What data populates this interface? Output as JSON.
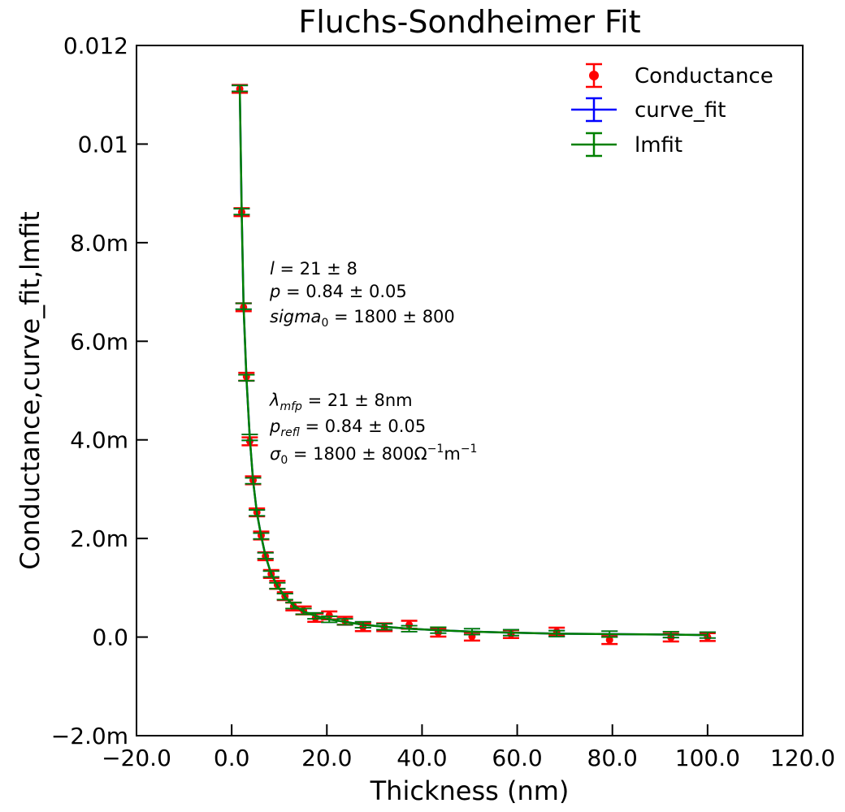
{
  "chart_data": {
    "type": "scatter",
    "title": "Fluchs-Sondheimer Fit",
    "xlabel": "Thickness (nm)",
    "ylabel": "Conductance,curve_fit,lmfit",
    "xlim": [
      -20,
      120
    ],
    "ylim": [
      -0.002,
      0.012
    ],
    "x_ticks": [
      -20,
      0,
      20,
      40,
      60,
      80,
      100,
      120
    ],
    "x_tick_labels": [
      "−20.0",
      "0.0",
      "20.0",
      "40.0",
      "60.0",
      "80.0",
      "100.0",
      "120.0"
    ],
    "y_ticks": [
      -0.002,
      0,
      0.002,
      0.004,
      0.006,
      0.008,
      0.01,
      0.012
    ],
    "y_tick_labels": [
      "−2.0m",
      "0.0",
      "2.0m",
      "4.0m",
      "6.0m",
      "8.0m",
      "0.01",
      "0.012"
    ],
    "grid": false,
    "legend_position": "top-right",
    "legend": [
      "Conductance",
      "curve_fit",
      "lmfit"
    ],
    "colors": {
      "Conductance": "#ff0000",
      "curve_fit": "#0000ff",
      "lmfit": "#008000"
    },
    "series": [
      {
        "name": "Conductance",
        "kind": "errorbar-points",
        "x": [
          1.7,
          2.1,
          2.5,
          3.1,
          3.8,
          4.5,
          5.3,
          6.2,
          7.1,
          8.3,
          9.6,
          11.2,
          13.0,
          15.1,
          17.6,
          20.5,
          23.8,
          27.6,
          32.1,
          37.3,
          43.4,
          50.5,
          58.7,
          68.3,
          79.4,
          92.3,
          100.0
        ],
        "y": [
          0.01112,
          0.00862,
          0.00669,
          0.00528,
          0.00397,
          0.00318,
          0.00253,
          0.00206,
          0.00164,
          0.00128,
          0.00106,
          0.00083,
          0.00062,
          0.00054,
          0.00039,
          0.00044,
          0.00033,
          0.0002,
          0.0002,
          0.00025,
          9e-05,
          1e-05,
          6e-05,
          0.00011,
          -6e-05,
          -1e-05,
          0.0
        ],
        "yerr": 8e-05
      },
      {
        "name": "curve_fit",
        "kind": "line",
        "x": [
          1.7,
          2.1,
          2.5,
          3.1,
          3.8,
          4.5,
          5.3,
          6.2,
          7.1,
          8.3,
          9.6,
          11.2,
          13.0,
          15.1,
          17.6,
          20.5,
          23.8,
          27.6,
          32.1,
          37.3,
          43.4,
          50.5,
          58.7,
          68.3,
          79.4,
          92.3,
          100.0
        ],
        "y": [
          0.01113,
          0.00863,
          0.00671,
          0.00526,
          0.00405,
          0.00317,
          0.00252,
          0.00205,
          0.00165,
          0.00128,
          0.00104,
          0.00082,
          0.00064,
          0.00052,
          0.00043,
          0.00036,
          0.00031,
          0.00025,
          0.00021,
          0.00017,
          0.00014,
          0.00011,
          9e-05,
          7e-05,
          6e-05,
          5e-05,
          4e-05
        ],
        "yerr": 6e-05
      },
      {
        "name": "lmfit",
        "kind": "line",
        "x": [
          1.7,
          2.1,
          2.5,
          3.1,
          3.8,
          4.5,
          5.3,
          6.2,
          7.1,
          8.3,
          9.6,
          11.2,
          13.0,
          15.1,
          17.6,
          20.5,
          23.8,
          27.6,
          32.1,
          37.3,
          43.4,
          50.5,
          58.7,
          68.3,
          79.4,
          92.3,
          100.0
        ],
        "y": [
          0.01113,
          0.00863,
          0.00671,
          0.00526,
          0.00405,
          0.00317,
          0.00252,
          0.00205,
          0.00165,
          0.00128,
          0.00104,
          0.00082,
          0.00064,
          0.00052,
          0.00043,
          0.00036,
          0.00031,
          0.00025,
          0.00021,
          0.00017,
          0.00014,
          0.00011,
          9e-05,
          7e-05,
          6e-05,
          5e-05,
          4e-05
        ],
        "yerr": 6e-05
      }
    ],
    "annotations": {
      "curve_fit": [
        "l = 21 ± 8",
        "p = 0.84 ± 0.05",
        "sigma₀ = 1800 ± 800"
      ],
      "lmfit": [
        "λ_mfp = 21 ± 8nm",
        "p_refl = 0.84 ± 0.05",
        "σ₀ = 1800 ± 800Ω⁻¹m⁻¹"
      ]
    }
  },
  "annotation_parts": {
    "curve_fit": {
      "l": {
        "sym": "l",
        "rest": " = 21 ± 8"
      },
      "p": {
        "sym": "p",
        "rest": " = 0.84 ± 0.05"
      },
      "sigma": {
        "sym": "sigma",
        "sub": "0",
        "rest": " = 1800 ± 800"
      }
    },
    "lmfit": {
      "lambda": {
        "sym": "λ",
        "sub": "mfp",
        "rest": " = 21 ± 8nm"
      },
      "p": {
        "sym": "p",
        "sub": "refl",
        "rest": " = 0.84 ± 0.05"
      },
      "sigma": {
        "sym": "σ",
        "sub": "0",
        "rest": " = 1800 ± 800Ω",
        "sup1": "−1",
        "mid": "m",
        "sup2": "−1"
      }
    }
  }
}
